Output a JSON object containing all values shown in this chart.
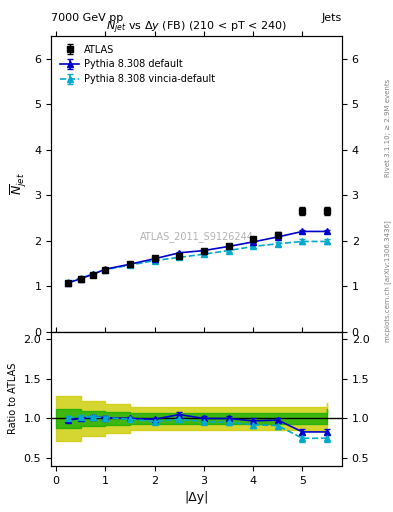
{
  "title_top": "7000 GeV pp",
  "title_right": "Jets",
  "plot_title": "N_{jet} vs Δy (FB) (210 < pT < 240)",
  "watermark": "ATLAS_2011_S9126244",
  "right_label_top": "Rivet 3.1.10; ≥ 2.9M events",
  "right_label_bot": "mcplots.cern.ch [arXiv:1306.3436]",
  "xlabel": "|Δy|",
  "ylabel_main": "$\\overline{N}_{jet}$",
  "ylabel_ratio": "Ratio to ATLAS",
  "dy_values": [
    0.25,
    0.5,
    0.75,
    1.0,
    1.5,
    2.0,
    2.5,
    3.0,
    3.5,
    4.0,
    4.5,
    5.0,
    5.5
  ],
  "atlas_y": [
    1.07,
    1.16,
    1.24,
    1.35,
    1.48,
    1.62,
    1.65,
    1.78,
    1.88,
    2.03,
    2.13,
    2.65,
    2.65
  ],
  "atlas_yerr": [
    0.02,
    0.02,
    0.02,
    0.02,
    0.03,
    0.03,
    0.03,
    0.04,
    0.04,
    0.05,
    0.05,
    0.08,
    0.08
  ],
  "pythia_default_y": [
    1.07,
    1.16,
    1.26,
    1.37,
    1.48,
    1.6,
    1.73,
    1.78,
    1.87,
    1.97,
    2.08,
    2.2,
    2.2
  ],
  "pythia_default_yerr": [
    0.01,
    0.01,
    0.01,
    0.01,
    0.02,
    0.02,
    0.02,
    0.03,
    0.03,
    0.03,
    0.03,
    0.04,
    0.04
  ],
  "pythia_vincia_y": [
    1.08,
    1.18,
    1.26,
    1.36,
    1.46,
    1.56,
    1.63,
    1.7,
    1.78,
    1.87,
    1.93,
    1.98,
    1.98
  ],
  "pythia_vincia_yerr": [
    0.01,
    0.01,
    0.01,
    0.02,
    0.02,
    0.02,
    0.02,
    0.03,
    0.03,
    0.03,
    0.04,
    0.05,
    0.05
  ],
  "ratio_default_y": [
    0.98,
    1.0,
    1.02,
    1.01,
    1.0,
    0.99,
    1.05,
    1.0,
    1.0,
    0.97,
    0.98,
    0.83,
    0.83
  ],
  "ratio_default_yerr": [
    0.02,
    0.02,
    0.02,
    0.02,
    0.02,
    0.02,
    0.03,
    0.03,
    0.03,
    0.03,
    0.03,
    0.04,
    0.04
  ],
  "ratio_vincia_y": [
    1.01,
    1.02,
    1.02,
    1.01,
    0.99,
    0.96,
    0.99,
    0.96,
    0.95,
    0.92,
    0.91,
    0.75,
    0.75
  ],
  "ratio_vincia_yerr": [
    0.02,
    0.02,
    0.02,
    0.02,
    0.02,
    0.02,
    0.03,
    0.03,
    0.03,
    0.04,
    0.04,
    0.05,
    0.05
  ],
  "band_x": [
    0.0,
    0.5,
    1.0,
    1.5,
    2.5,
    3.5,
    4.5,
    5.5
  ],
  "green_band_lo": [
    0.88,
    0.9,
    0.92,
    0.93,
    0.93,
    0.93,
    0.93,
    0.93
  ],
  "green_band_hi": [
    1.12,
    1.1,
    1.08,
    1.07,
    1.07,
    1.07,
    1.07,
    1.12
  ],
  "yellow_band_lo": [
    0.72,
    0.78,
    0.82,
    0.85,
    0.85,
    0.85,
    0.85,
    0.85
  ],
  "yellow_band_hi": [
    1.28,
    1.22,
    1.18,
    1.15,
    1.15,
    1.15,
    1.15,
    1.2
  ],
  "atlas_color": "#000000",
  "default_color": "#0000cc",
  "vincia_color": "#00aacc",
  "green_band_color": "#00aa00",
  "yellow_band_color": "#cccc00",
  "main_ylim": [
    0.0,
    6.5
  ],
  "ratio_ylim": [
    0.4,
    2.1
  ],
  "xlim": [
    -0.1,
    5.8
  ]
}
